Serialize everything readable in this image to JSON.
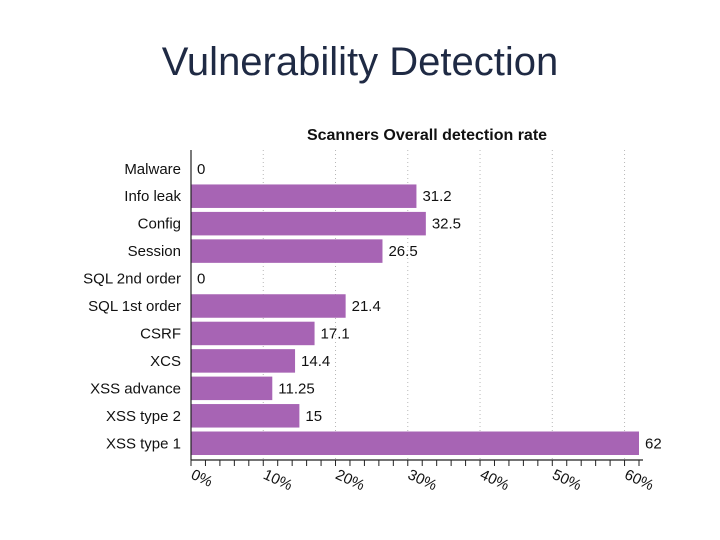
{
  "slide": {
    "title": "Vulnerability Detection"
  },
  "colors": {
    "bar": "#a764b4",
    "grid": "#b8b8b8",
    "axis": "#222222",
    "text": "#111111",
    "title": "#1f2a44"
  },
  "chart_data": {
    "type": "bar",
    "orientation": "horizontal",
    "title": "Scanners Overall detection rate",
    "categories": [
      "Malware",
      "Info leak",
      "Config",
      "Session",
      "SQL 2nd order",
      "SQL 1st order",
      "CSRF",
      "XCS",
      "XSS advance",
      "XSS type 2",
      "XSS type 1"
    ],
    "values": [
      0,
      31.2,
      32.5,
      26.5,
      0,
      21.4,
      17.1,
      14.4,
      11.25,
      15,
      62
    ],
    "data_labels": [
      "0",
      "31.2",
      "32.5",
      "26.5",
      "0",
      "21.4",
      "17.1",
      "14.4",
      "11.25",
      "15",
      "62"
    ],
    "xticks": [
      0,
      10,
      20,
      30,
      40,
      50,
      60
    ],
    "xtick_labels": [
      "0%",
      "10%",
      "20%",
      "30%",
      "40%",
      "50%",
      "60%"
    ],
    "xlim": [
      0,
      62
    ],
    "xlabel": "",
    "ylabel": "",
    "grid": true,
    "legend": "none"
  }
}
